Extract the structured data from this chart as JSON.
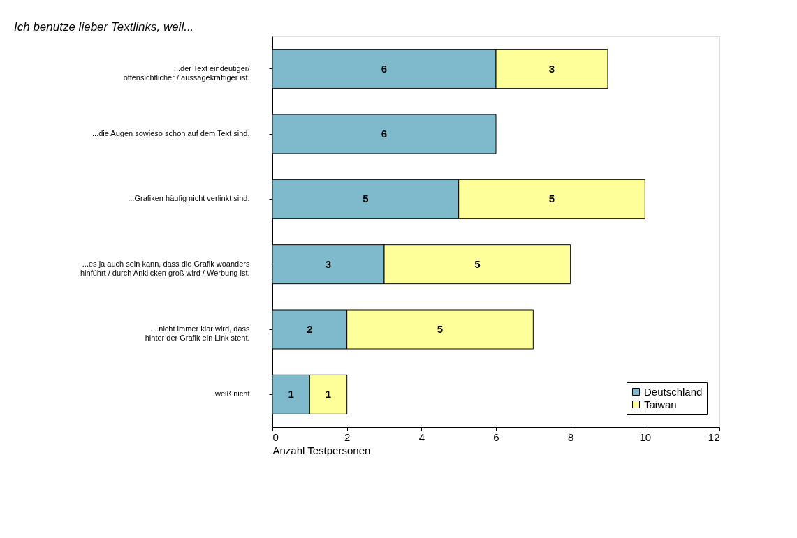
{
  "chart_data": {
    "type": "bar",
    "orientation": "horizontal",
    "stacked": true,
    "title": "Ich benutze lieber Textlinks, weil...",
    "xlabel": "Anzahl Testpersonen",
    "categories": [
      "...der Text eindeutiger/\noffensichtlicher / aussagekräftiger ist.",
      "...die Augen sowieso schon auf dem Text sind.",
      "...Grafiken häufig nicht verlinkt sind.",
      "...es ja auch sein kann, dass die Grafik woanders\nhinführt / durch Anklicken groß wird / Werbung ist.",
      ". ..nicht immer klar wird, dass\nhinter der Grafik ein Link steht.",
      "weiß nicht"
    ],
    "series": [
      {
        "name": "Deutschland",
        "color": "#7fbacc",
        "values": [
          6,
          6,
          5,
          3,
          2,
          1
        ]
      },
      {
        "name": "Taiwan",
        "color": "#ffff99",
        "values": [
          3,
          null,
          5,
          5,
          5,
          1
        ]
      }
    ],
    "xlim": [
      0,
      12
    ],
    "xticks": [
      0,
      2,
      4,
      6,
      8,
      10,
      12
    ],
    "grid": false,
    "legend": "bottom right",
    "data_labels": true
  }
}
